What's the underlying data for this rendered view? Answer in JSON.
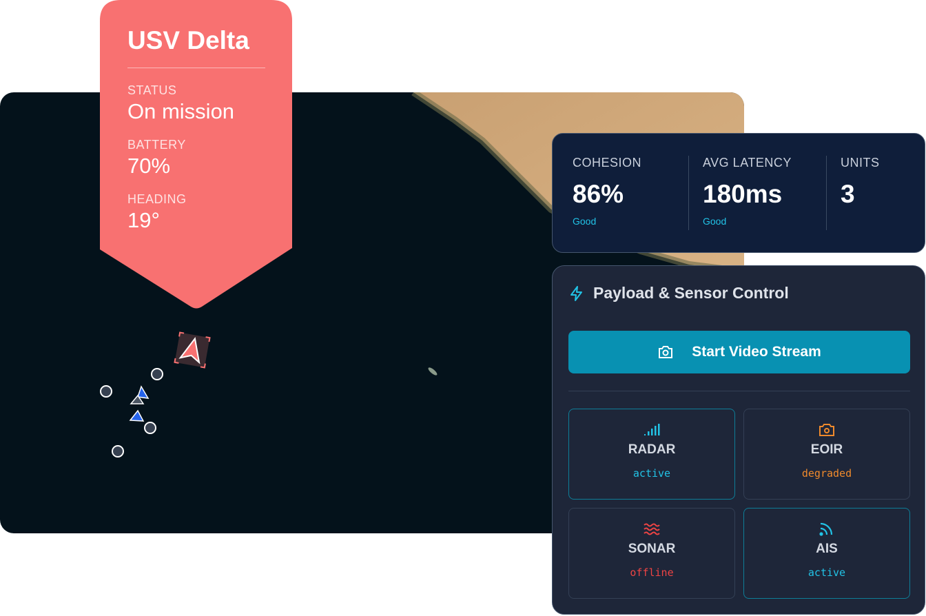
{
  "vessel": {
    "name": "USV Delta",
    "status_label": "STATUS",
    "status": "On mission",
    "battery_label": "BATTERY",
    "battery": "70%",
    "heading_label": "HEADING",
    "heading": "19°"
  },
  "stats": [
    {
      "label": "COHESION",
      "value": "86%",
      "sub": "Good"
    },
    {
      "label": "AVG LATENCY",
      "value": "180ms",
      "sub": "Good"
    },
    {
      "label": "UNITS",
      "value": "3",
      "sub": ""
    }
  ],
  "panel": {
    "title": "Payload & Sensor Control",
    "icon": "lightning-icon",
    "button": "Start Video Stream",
    "sensors": [
      {
        "name": "RADAR",
        "status": "active",
        "icon": "signal-icon",
        "color": "#22c3e6"
      },
      {
        "name": "EOIR",
        "status": "degraded",
        "icon": "camera-icon",
        "color": "#f08a2c"
      },
      {
        "name": "SONAR",
        "status": "offline",
        "icon": "waves-icon",
        "color": "#ef4444"
      },
      {
        "name": "AIS",
        "status": "active",
        "icon": "rss-icon",
        "color": "#22c3e6"
      }
    ]
  },
  "colors": {
    "accent": "#0891b2",
    "callout": "#f87171",
    "active": "#22c3e6",
    "degraded": "#f08a2c",
    "offline": "#ef4444"
  }
}
